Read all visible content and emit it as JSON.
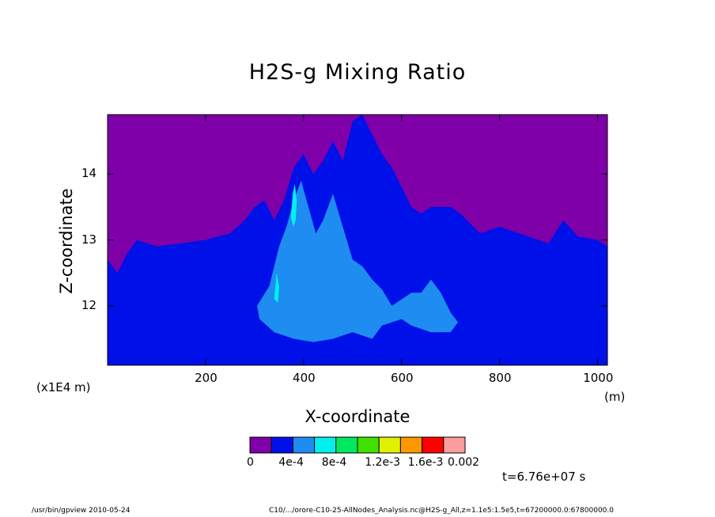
{
  "chart_data": {
    "type": "heatmap",
    "title": "H2S-g Mixing Ratio",
    "xlabel": "X-coordinate",
    "ylabel": "Z-coordinate",
    "x_unit": "(m)",
    "x_factor": "(x1E4 m)",
    "xlim": [
      0,
      1020
    ],
    "ylim": [
      11.1,
      14.9
    ],
    "x_ticks": [
      "200",
      "400",
      "600",
      "800",
      "1000"
    ],
    "x_tick_values": [
      200,
      400,
      600,
      800,
      1000
    ],
    "y_ticks": [
      "12",
      "13",
      "14"
    ],
    "y_tick_values": [
      12,
      13,
      14
    ],
    "legend": {
      "labels": [
        "0",
        "4e-4",
        "8e-4",
        "1.2e-3",
        "1.6e-3",
        "0.002"
      ],
      "bins": [
        0,
        0.0002,
        0.0004,
        0.0006,
        0.0008,
        0.001,
        0.0012,
        0.0014,
        0.0016,
        0.0018,
        0.002
      ],
      "colors": [
        "#7f00a8",
        "#0010e8",
        "#1e8cf0",
        "#00f0f0",
        "#00e860",
        "#40e000",
        "#e0f000",
        "#ff9800",
        "#ff0000",
        "#ff9c9c"
      ]
    },
    "regions": [
      {
        "level": 0,
        "upper_boundary": [
          [
            0,
            12.7
          ],
          [
            20,
            12.5
          ],
          [
            40,
            12.8
          ],
          [
            60,
            13.0
          ],
          [
            100,
            12.9
          ],
          [
            150,
            12.95
          ],
          [
            200,
            13.0
          ],
          [
            250,
            13.1
          ],
          [
            280,
            13.3
          ],
          [
            300,
            13.5
          ],
          [
            320,
            13.6
          ],
          [
            340,
            13.3
          ],
          [
            360,
            13.6
          ],
          [
            380,
            14.1
          ],
          [
            400,
            14.3
          ],
          [
            420,
            14.0
          ],
          [
            440,
            14.2
          ],
          [
            460,
            14.5
          ],
          [
            480,
            14.2
          ],
          [
            500,
            14.8
          ],
          [
            520,
            14.9
          ],
          [
            540,
            14.6
          ],
          [
            560,
            14.3
          ],
          [
            580,
            14.1
          ],
          [
            600,
            13.8
          ],
          [
            620,
            13.5
          ],
          [
            640,
            13.4
          ],
          [
            660,
            13.5
          ],
          [
            700,
            13.5
          ],
          [
            720,
            13.4
          ],
          [
            760,
            13.1
          ],
          [
            800,
            13.2
          ],
          [
            840,
            13.1
          ],
          [
            880,
            13.0
          ],
          [
            900,
            12.95
          ],
          [
            930,
            13.3
          ],
          [
            960,
            13.05
          ],
          [
            1000,
            13.0
          ],
          [
            1020,
            12.9
          ]
        ]
      },
      {
        "level": 2,
        "boundary": [
          [
            305,
            12.0
          ],
          [
            330,
            12.3
          ],
          [
            350,
            12.9
          ],
          [
            365,
            13.2
          ],
          [
            380,
            13.6
          ],
          [
            395,
            13.9
          ],
          [
            410,
            13.5
          ],
          [
            425,
            13.1
          ],
          [
            440,
            13.3
          ],
          [
            460,
            13.7
          ],
          [
            480,
            13.2
          ],
          [
            500,
            12.7
          ],
          [
            520,
            12.6
          ],
          [
            540,
            12.4
          ],
          [
            560,
            12.25
          ],
          [
            580,
            12.0
          ],
          [
            600,
            12.1
          ],
          [
            620,
            12.2
          ],
          [
            640,
            12.2
          ],
          [
            660,
            12.4
          ],
          [
            680,
            12.2
          ],
          [
            700,
            11.9
          ],
          [
            715,
            11.75
          ],
          [
            700,
            11.6
          ],
          [
            660,
            11.6
          ],
          [
            620,
            11.7
          ],
          [
            600,
            11.8
          ],
          [
            560,
            11.7
          ],
          [
            540,
            11.5
          ],
          [
            500,
            11.6
          ],
          [
            460,
            11.5
          ],
          [
            420,
            11.45
          ],
          [
            380,
            11.5
          ],
          [
            340,
            11.6
          ],
          [
            310,
            11.8
          ]
        ]
      },
      {
        "level": 3,
        "boundary": [
          [
            374,
            13.35
          ],
          [
            378,
            13.7
          ],
          [
            382,
            13.85
          ],
          [
            386,
            13.6
          ],
          [
            384,
            13.3
          ],
          [
            379,
            13.2
          ]
        ]
      },
      {
        "level": 3,
        "boundary": [
          [
            340,
            12.1
          ],
          [
            345,
            12.5
          ],
          [
            350,
            12.3
          ],
          [
            348,
            12.05
          ]
        ]
      }
    ],
    "time_label": "t=6.76e+07 s"
  },
  "footer": {
    "left": "/usr/bin/gpview  2010-05-24",
    "right": "C10/.../orore-C10-25-AllNodes_Analysis.nc@H2S-g_All,z=1.1e5:1.5e5,t=67200000.0:67800000.0"
  }
}
